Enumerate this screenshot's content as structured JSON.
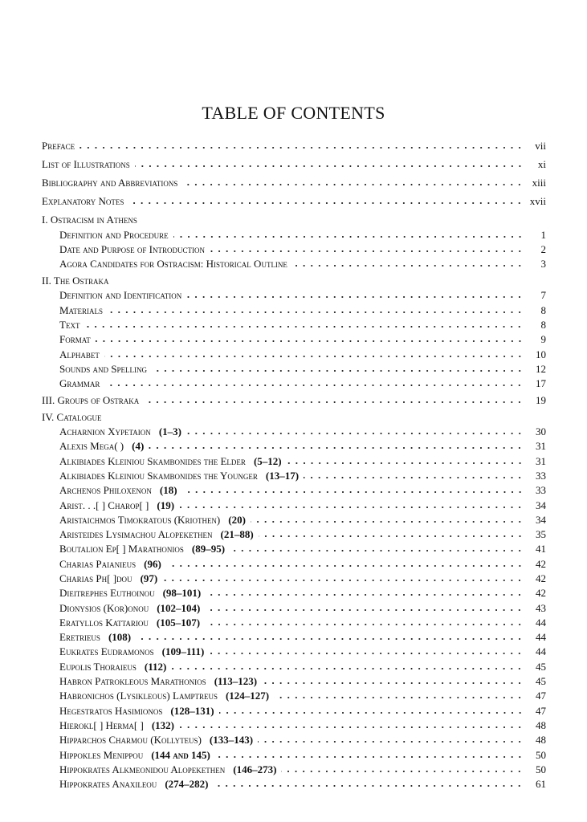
{
  "title": "TABLE OF CONTENTS",
  "entries": [
    {
      "type": "front",
      "name": "Preface",
      "page": "vii"
    },
    {
      "type": "front",
      "name": "List of Illustrations",
      "page": "xi"
    },
    {
      "type": "front",
      "name": "Bibliography and Abbreviations",
      "page": "xiii"
    },
    {
      "type": "front",
      "name": "Explanatory Notes",
      "page": "xvii"
    },
    {
      "type": "head",
      "name": "I. Ostracism in Athens"
    },
    {
      "type": "sub",
      "name": "Definition and Procedure",
      "page": "1"
    },
    {
      "type": "sub",
      "name": "Date and Purpose of Introduction",
      "page": "2"
    },
    {
      "type": "sub",
      "name": "Agora Candidates for Ostracism: Historical Outline",
      "page": "3"
    },
    {
      "type": "head",
      "name": "II. The Ostraka"
    },
    {
      "type": "sub",
      "name": "Definition and Identification",
      "page": "7"
    },
    {
      "type": "sub",
      "name": "Materials",
      "page": "8"
    },
    {
      "type": "sub",
      "name": "Text",
      "page": "8"
    },
    {
      "type": "sub",
      "name": "Format",
      "page": "9"
    },
    {
      "type": "sub",
      "name": "Alphabet",
      "page": "10"
    },
    {
      "type": "sub",
      "name": "Sounds and Spelling",
      "page": "12"
    },
    {
      "type": "sub",
      "name": "Grammar",
      "page": "17"
    },
    {
      "type": "headpage",
      "name": "III. Groups of Ostraka",
      "page": "19"
    },
    {
      "type": "head",
      "name": "IV. Catalogue"
    },
    {
      "type": "sub",
      "name": "Acharnion Xypetaion",
      "nums": "(1–3)",
      "page": "30"
    },
    {
      "type": "sub",
      "name": "Alexis Mega(        )",
      "nums": "(4)",
      "page": "31"
    },
    {
      "type": "sub",
      "name": "Alkibiades Kleiniou Skambonides the Elder",
      "nums": "(5–12)",
      "page": "31"
    },
    {
      "type": "sub",
      "name": "Alkibiades Kleiniou Skambonides the Younger",
      "nums": "(13–17)",
      "page": "33"
    },
    {
      "type": "sub",
      "name": "Archenos Philoxenon",
      "nums": "(18)",
      "page": "33"
    },
    {
      "type": "sub",
      "name": "Arist. . .[        ] Charop[        ]",
      "nums": "(19)",
      "page": "34"
    },
    {
      "type": "sub",
      "name": "Aristaichmos Timokratous (Kriothen)",
      "nums": "(20)",
      "page": "34"
    },
    {
      "type": "sub",
      "name": "Aristeides Lysimachou Alopekethen",
      "nums": "(21–88)",
      "page": "35"
    },
    {
      "type": "sub",
      "name": "Boutalion Ep[        ] Marathonios",
      "nums": "(89–95)",
      "page": "41"
    },
    {
      "type": "sub",
      "name": "Charias Paianieus",
      "nums": "(96)",
      "page": "42"
    },
    {
      "type": "sub",
      "name": "Charias Ph[        ]dou",
      "nums": "(97)",
      "page": "42"
    },
    {
      "type": "sub",
      "name": "Dieitrephes Euthoinou",
      "nums": "(98–101)",
      "page": "42"
    },
    {
      "type": "sub",
      "name": "Dionysios (Kor)onou",
      "nums": "(102–104)",
      "page": "43"
    },
    {
      "type": "sub",
      "name": "Eratyllos Kattariou",
      "nums": "(105–107)",
      "page": "44"
    },
    {
      "type": "sub",
      "name": "Eretrieus",
      "nums": "(108)",
      "page": "44"
    },
    {
      "type": "sub",
      "name": "Eukrates Eudramonos",
      "nums": "(109–111)",
      "page": "44"
    },
    {
      "type": "sub",
      "name": "Eupolis Thoraieus",
      "nums": "(112)",
      "page": "45"
    },
    {
      "type": "sub",
      "name": "Habron Patrokleous Marathonios",
      "nums": "(113–123)",
      "page": "45"
    },
    {
      "type": "sub",
      "name": "Habronichos (Lysikleous) Lamptreus",
      "nums": "(124–127)",
      "page": "47"
    },
    {
      "type": "sub",
      "name": "Hegestratos Hasimionos",
      "nums": "(128–131)",
      "page": "47"
    },
    {
      "type": "sub",
      "name": "Hierokl[        ] Herma[        ]",
      "nums": "(132)",
      "page": "48"
    },
    {
      "type": "sub",
      "name": "Hipparchos Charmou (Kollyteus)",
      "nums": "(133–143)",
      "page": "48"
    },
    {
      "type": "sub",
      "name": "Hippokles Menippou",
      "nums": "(144 and 145)",
      "page": "50"
    },
    {
      "type": "sub",
      "name": "Hippokrates Alkmeonidou Alopekethen",
      "nums": "(146–273)",
      "page": "50"
    },
    {
      "type": "sub",
      "name": "Hippokrates Anaxileou",
      "nums": "(274–282)",
      "page": "61"
    }
  ]
}
